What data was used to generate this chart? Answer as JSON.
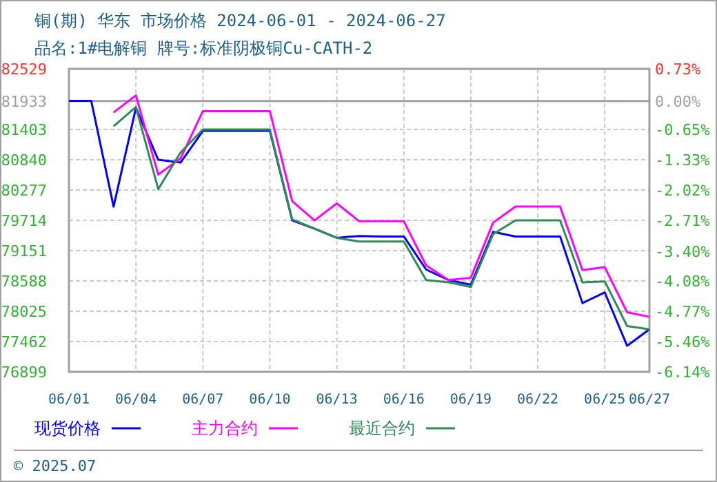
{
  "chart_data": {
    "type": "line",
    "title": "铜(期) 华东 市场价格 2024-06-01 - 2024-06-27",
    "subtitle": "品名:1#电解铜 牌号:标准阴极铜Cu-CATH-2",
    "x": [
      "2024-06-01",
      "2024-06-02",
      "2024-06-03",
      "2024-06-04",
      "2024-06-05",
      "2024-06-06",
      "2024-06-07",
      "2024-06-08",
      "2024-06-09",
      "2024-06-10",
      "2024-06-11",
      "2024-06-12",
      "2024-06-13",
      "2024-06-14",
      "2024-06-15",
      "2024-06-16",
      "2024-06-17",
      "2024-06-18",
      "2024-06-19",
      "2024-06-20",
      "2024-06-21",
      "2024-06-22",
      "2024-06-23",
      "2024-06-24",
      "2024-06-25",
      "2024-06-26",
      "2024-06-27"
    ],
    "series": [
      {
        "name": "现货价格",
        "color": "#0000ff",
        "values": [
          81933,
          81933,
          79969,
          81805,
          80839,
          80788,
          81377,
          81377,
          81377,
          81377,
          79714,
          79560,
          79388,
          79424,
          79414,
          79414,
          78799,
          78605,
          78518,
          79500,
          79414,
          79414,
          79414,
          78177,
          78374,
          77383,
          77690
        ]
      },
      {
        "name": "主力合约",
        "color": "#ff00ff",
        "values": [
          null,
          null,
          81718,
          82035,
          80565,
          80865,
          81743,
          81743,
          81743,
          81743,
          80071,
          79713,
          80028,
          79697,
          79697,
          79697,
          78876,
          78605,
          78647,
          79671,
          79969,
          79969,
          79969,
          78791,
          78843,
          78006,
          77921
        ]
      },
      {
        "name": "最近合约",
        "color": "#2e8b57",
        "values": [
          null,
          null,
          81462,
          81820,
          80294,
          80975,
          81403,
          81403,
          81403,
          81403,
          79731,
          79560,
          79388,
          79321,
          79321,
          79321,
          78605,
          78562,
          78476,
          79457,
          79714,
          79714,
          79714,
          78562,
          78579,
          77750,
          77690
        ]
      }
    ],
    "xlim": [
      "2024-06-01",
      "2024-06-27"
    ],
    "xticks": [
      {
        "value": "2024-06-01",
        "label": "06/01"
      },
      {
        "value": "2024-06-04",
        "label": "06/04"
      },
      {
        "value": "2024-06-07",
        "label": "06/07"
      },
      {
        "value": "2024-06-10",
        "label": "06/10"
      },
      {
        "value": "2024-06-13",
        "label": "06/13"
      },
      {
        "value": "2024-06-16",
        "label": "06/16"
      },
      {
        "value": "2024-06-19",
        "label": "06/19"
      },
      {
        "value": "2024-06-22",
        "label": "06/22"
      },
      {
        "value": "2024-06-25",
        "label": "06/25"
      },
      {
        "value": "2024-06-27",
        "label": "06/27"
      }
    ],
    "ylim": [
      76899,
      82529
    ],
    "yticks": [
      76899,
      77462,
      78025,
      78588,
      79151,
      79714,
      80277,
      80840,
      81403,
      81933,
      82529
    ],
    "y2lim": [
      -6.14,
      0.73
    ],
    "y2ticks": [
      {
        "value": -6.14,
        "label": "-6.14%"
      },
      {
        "value": -5.46,
        "label": "-5.46%"
      },
      {
        "value": -4.77,
        "label": "-4.77%"
      },
      {
        "value": -4.08,
        "label": "-4.08%"
      },
      {
        "value": -3.4,
        "label": "-3.40%"
      },
      {
        "value": -2.71,
        "label": "-2.71%"
      },
      {
        "value": -2.02,
        "label": "-2.02%"
      },
      {
        "value": -1.33,
        "label": "-1.33%"
      },
      {
        "value": -0.65,
        "label": "-0.65%"
      },
      {
        "value": 0,
        "label": "0.00%"
      },
      {
        "value": 0.73,
        "label": "0.73%"
      }
    ],
    "ref_lines": [
      {
        "axis": "y2",
        "value": 0,
        "color": "#a0a0a0"
      }
    ],
    "grid": true,
    "legend": "bottom",
    "marker": "none",
    "line_style": "solid",
    "annotations": [
      "© 2025.07"
    ]
  }
}
